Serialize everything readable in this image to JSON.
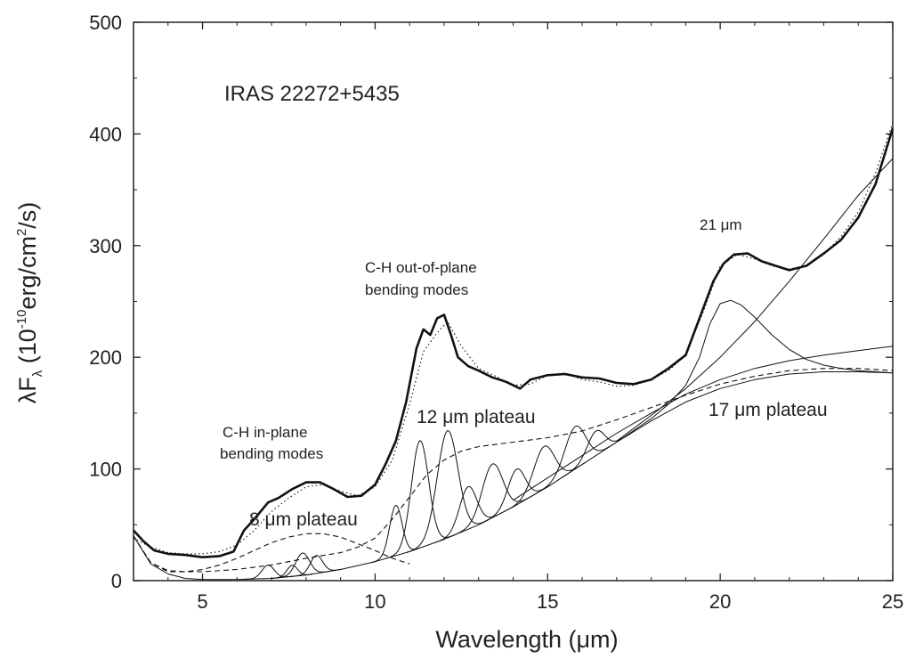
{
  "chart_data": {
    "type": "line",
    "title": "IRAS 22272+5435",
    "xlabel_main": "Wavelength (",
    "xlabel_unit": "μm",
    "xlabel_close": ")",
    "ylabel_main": "λF",
    "ylabel_sub": "λ",
    "ylabel_a": " (10",
    "ylabel_exp1": "-10",
    "ylabel_b": "erg/cm",
    "ylabel_exp2": "2",
    "ylabel_c": "/s)",
    "xlim": [
      3,
      25
    ],
    "ylim": [
      0,
      500
    ],
    "xticks": [
      5,
      10,
      15,
      20,
      25
    ],
    "yticks": [
      0,
      100,
      200,
      300,
      400,
      500
    ],
    "grid": false,
    "annotations": {
      "ch_in_plane_1": "C-H in-plane",
      "ch_in_plane_2": "bending modes",
      "ch_out_plane_1": "C-H out-of-plane",
      "ch_out_plane_2": "bending modes",
      "plateau_8": "8 μm plateau",
      "plateau_12": "12 μm plateau",
      "plateau_17": "17 μm plateau",
      "feature_21": "21 μm"
    },
    "series": [
      {
        "style": "thick",
        "x": [
          3.0,
          3.3,
          3.6,
          4.0,
          4.5,
          5.0,
          5.5,
          5.9,
          6.2,
          6.5,
          6.9,
          7.2,
          7.6,
          8.0,
          8.4,
          8.8,
          9.2,
          9.6,
          10.0,
          10.3,
          10.6,
          10.9,
          11.2,
          11.4,
          11.6,
          11.8,
          12.0,
          12.2,
          12.4,
          12.7,
          13.0,
          13.4,
          13.8,
          14.2,
          14.5,
          15.0,
          15.5,
          16.0,
          16.5,
          17.0,
          17.5,
          18.0,
          18.5,
          19.0,
          19.4,
          19.8,
          20.1,
          20.4,
          20.8,
          21.2,
          21.6,
          22.0,
          22.5,
          23.0,
          23.5,
          24.0,
          24.5,
          24.8,
          25.0
        ],
        "y": [
          45,
          35,
          27,
          24,
          23,
          21,
          22,
          26,
          45,
          55,
          70,
          74,
          82,
          88,
          88,
          82,
          75,
          76,
          86,
          104,
          125,
          160,
          208,
          225,
          220,
          235,
          238,
          220,
          200,
          192,
          188,
          182,
          178,
          172,
          180,
          184,
          185,
          182,
          181,
          177,
          176,
          180,
          190,
          202,
          235,
          268,
          284,
          292,
          293,
          286,
          282,
          278,
          282,
          293,
          305,
          325,
          355,
          385,
          405
        ]
      },
      {
        "style": "dotted",
        "x": [
          3.0,
          3.5,
          4.0,
          4.5,
          5.0,
          5.5,
          6.0,
          6.5,
          7.0,
          7.5,
          8.0,
          8.5,
          9.0,
          9.5,
          10.0,
          10.5,
          11.0,
          11.4,
          11.8,
          12.1,
          12.5,
          13.0,
          13.5,
          14.0,
          14.5,
          15.0,
          15.5,
          16.0,
          16.5,
          17.0,
          17.5,
          18.0,
          18.5,
          19.0,
          19.5,
          20.0,
          20.5,
          21.0,
          21.5,
          22.0,
          22.5,
          23.0,
          23.5,
          24.0,
          24.5,
          25.0
        ],
        "y": [
          38,
          30,
          25,
          24,
          24,
          26,
          32,
          45,
          62,
          74,
          84,
          86,
          80,
          76,
          84,
          108,
          158,
          205,
          222,
          232,
          210,
          190,
          183,
          175,
          176,
          184,
          186,
          180,
          178,
          174,
          175,
          180,
          188,
          202,
          240,
          282,
          292,
          288,
          282,
          279,
          282,
          292,
          308,
          330,
          365,
          410
        ]
      },
      {
        "style": "thin",
        "name_note": "continuum",
        "x": [
          3.0,
          3.5,
          4.0,
          4.5,
          5.0,
          5.5,
          6.0,
          7.0,
          8.0,
          9.0,
          10.0,
          11.0,
          12.0,
          13.0,
          14.0,
          15.0,
          16.0,
          17.0,
          18.0,
          19.0,
          20.0,
          21.0,
          22.0,
          23.0,
          24.0,
          25.0
        ],
        "y": [
          40,
          15,
          6,
          2,
          1,
          1,
          1,
          2,
          5,
          10,
          17,
          26,
          37,
          50,
          66,
          84,
          104,
          124,
          143,
          160,
          172,
          180,
          185,
          187,
          187,
          186
        ]
      },
      {
        "style": "dashed",
        "name_note": "8 um plateau",
        "x": [
          3.0,
          3.5,
          4.0,
          4.5,
          5.0,
          5.5,
          6.0,
          6.5,
          7.0,
          7.5,
          8.0,
          8.5,
          9.0,
          9.5,
          10.0,
          10.5,
          11.0
        ],
        "y": [
          40,
          16,
          9,
          8,
          10,
          14,
          20,
          27,
          34,
          39,
          42,
          42,
          39,
          33,
          27,
          20,
          15
        ]
      },
      {
        "style": "dashed",
        "name_note": "12 um plateau",
        "x": [
          3.0,
          3.5,
          4.0,
          5.0,
          6.0,
          7.0,
          8.0,
          9.0,
          9.5,
          10.0,
          10.5,
          11.0,
          11.5,
          12.0,
          12.5,
          13.0,
          14.0,
          15.0,
          16.0,
          17.0,
          18.0,
          19.0,
          20.0,
          21.0,
          22.0,
          23.0,
          24.0,
          25.0
        ],
        "y": [
          40,
          16,
          8,
          8,
          10,
          14,
          20,
          25,
          30,
          38,
          55,
          75,
          95,
          108,
          116,
          120,
          124,
          128,
          134,
          144,
          155,
          166,
          176,
          183,
          188,
          190,
          190,
          188
        ]
      },
      {
        "style": "thin",
        "name_note": "21 um feature",
        "x": [
          17.0,
          18.0,
          18.5,
          19.0,
          19.4,
          19.7,
          20.0,
          20.3,
          20.6,
          21.0,
          21.5,
          22.0,
          22.5,
          23.0,
          23.5,
          24.0,
          24.5,
          25.0
        ],
        "y": [
          124,
          145,
          158,
          175,
          200,
          230,
          248,
          251,
          247,
          236,
          220,
          207,
          198,
          193,
          190,
          188,
          187,
          186
        ]
      },
      {
        "style": "thin",
        "name_note": "rising continuum",
        "x": [
          17.0,
          18.0,
          19.0,
          20.0,
          21.0,
          22.0,
          23.0,
          24.0,
          25.0
        ],
        "y": [
          125,
          148,
          172,
          200,
          232,
          268,
          306,
          345,
          378
        ]
      },
      {
        "style": "thin",
        "name_note": "17 um plateau",
        "x": [
          14.0,
          15.0,
          16.0,
          17.0,
          18.0,
          19.0,
          20.0,
          21.0,
          22.0,
          23.0,
          24.0,
          25.0
        ],
        "y": [
          72,
          92,
          112,
          132,
          150,
          167,
          180,
          190,
          197,
          202,
          206,
          210
        ]
      }
    ],
    "gaussians": [
      {
        "center": 6.9,
        "height": 12,
        "width": 0.18
      },
      {
        "center": 7.6,
        "height": 10,
        "width": 0.15
      },
      {
        "center": 7.9,
        "height": 20,
        "width": 0.2
      },
      {
        "center": 8.3,
        "height": 16,
        "width": 0.18
      },
      {
        "center": 10.6,
        "height": 45,
        "width": 0.18
      },
      {
        "center": 11.3,
        "height": 96,
        "width": 0.25
      },
      {
        "center": 12.1,
        "height": 96,
        "width": 0.3
      },
      {
        "center": 12.7,
        "height": 38,
        "width": 0.25
      },
      {
        "center": 13.4,
        "height": 48,
        "width": 0.3
      },
      {
        "center": 14.1,
        "height": 32,
        "width": 0.25
      },
      {
        "center": 14.9,
        "height": 38,
        "width": 0.3
      },
      {
        "center": 15.8,
        "height": 38,
        "width": 0.3
      },
      {
        "center": 16.4,
        "height": 22,
        "width": 0.25
      }
    ]
  }
}
